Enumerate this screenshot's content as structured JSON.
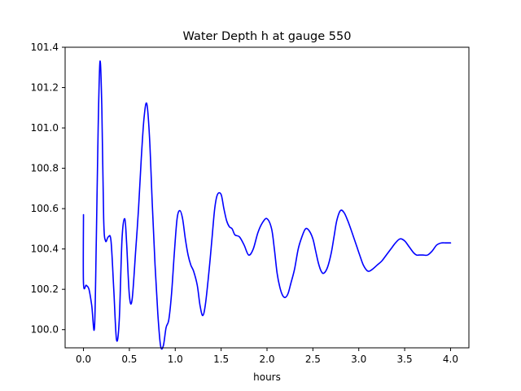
{
  "chart_data": {
    "type": "line",
    "title": "Water Depth h at gauge 550",
    "xlabel": "hours",
    "ylabel": "",
    "xlim": [
      -0.2,
      4.2
    ],
    "ylim": [
      99.91,
      101.4
    ],
    "x_ticks": [
      0.0,
      0.5,
      1.0,
      1.5,
      2.0,
      2.5,
      3.0,
      3.5,
      4.0
    ],
    "x_tick_labels": [
      "0.0",
      "0.5",
      "1.0",
      "1.5",
      "2.0",
      "2.5",
      "3.0",
      "3.5",
      "4.0"
    ],
    "y_ticks": [
      100.0,
      100.2,
      100.4,
      100.6,
      100.8,
      101.0,
      101.2,
      101.4
    ],
    "y_tick_labels": [
      "100.0",
      "100.2",
      "100.4",
      "100.6",
      "100.8",
      "101.0",
      "101.2",
      "101.4"
    ],
    "grid": false,
    "legend": "none",
    "series": [
      {
        "color": "#0000ff",
        "x": [
          0.0,
          0.0,
          0.03,
          0.06,
          0.09,
          0.12,
          0.14,
          0.16,
          0.18,
          0.2,
          0.22,
          0.24,
          0.27,
          0.3,
          0.33,
          0.36,
          0.39,
          0.42,
          0.45,
          0.47,
          0.5,
          0.53,
          0.57,
          0.6,
          0.63,
          0.66,
          0.69,
          0.72,
          0.75,
          0.78,
          0.81,
          0.84,
          0.87,
          0.9,
          0.93,
          0.96,
          0.99,
          1.02,
          1.05,
          1.08,
          1.11,
          1.14,
          1.17,
          1.2,
          1.24,
          1.27,
          1.3,
          1.33,
          1.37,
          1.4,
          1.43,
          1.46,
          1.5,
          1.53,
          1.56,
          1.59,
          1.62,
          1.65,
          1.7,
          1.75,
          1.8,
          1.85,
          1.9,
          1.95,
          2.0,
          2.05,
          2.08,
          2.11,
          2.14,
          2.17,
          2.2,
          2.23,
          2.26,
          2.3,
          2.34,
          2.38,
          2.42,
          2.46,
          2.5,
          2.53,
          2.56,
          2.59,
          2.62,
          2.66,
          2.7,
          2.73,
          2.76,
          2.8,
          2.84,
          2.88,
          2.92,
          2.95,
          2.98,
          3.01,
          3.05,
          3.1,
          3.15,
          3.2,
          3.25,
          3.3,
          3.35,
          3.4,
          3.45,
          3.5,
          3.55,
          3.6,
          3.63,
          3.66,
          3.7,
          3.75,
          3.8,
          3.85,
          3.9,
          3.95,
          4.0
        ],
        "y": [
          100.57,
          100.23,
          100.22,
          100.2,
          100.12,
          100.01,
          100.45,
          101.0,
          101.33,
          101.1,
          100.55,
          100.44,
          100.46,
          100.44,
          100.2,
          99.95,
          100.05,
          100.45,
          100.55,
          100.43,
          100.17,
          100.15,
          100.4,
          100.6,
          100.85,
          101.05,
          101.12,
          100.95,
          100.62,
          100.32,
          100.08,
          99.92,
          99.92,
          100.01,
          100.05,
          100.18,
          100.38,
          100.55,
          100.59,
          100.55,
          100.45,
          100.37,
          100.32,
          100.29,
          100.22,
          100.12,
          100.07,
          100.13,
          100.3,
          100.45,
          100.6,
          100.67,
          100.67,
          100.6,
          100.54,
          100.51,
          100.5,
          100.47,
          100.46,
          100.42,
          100.37,
          100.4,
          100.48,
          100.53,
          100.55,
          100.5,
          100.4,
          100.28,
          100.21,
          100.17,
          100.16,
          100.18,
          100.23,
          100.3,
          100.4,
          100.46,
          100.5,
          100.49,
          100.45,
          100.39,
          100.33,
          100.29,
          100.28,
          100.31,
          100.38,
          100.46,
          100.54,
          100.59,
          100.58,
          100.54,
          100.49,
          100.45,
          100.41,
          100.37,
          100.32,
          100.29,
          100.3,
          100.32,
          100.34,
          100.37,
          100.4,
          100.43,
          100.45,
          100.44,
          100.41,
          100.38,
          100.37,
          100.37,
          100.37,
          100.37,
          100.39,
          100.42,
          100.43,
          100.43,
          100.43
        ]
      }
    ]
  }
}
